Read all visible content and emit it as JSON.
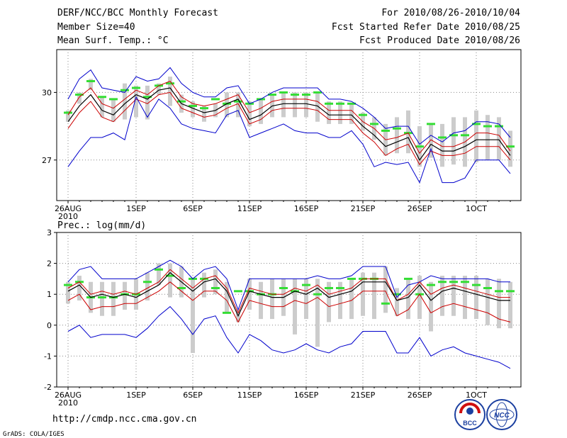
{
  "header": {
    "title": "DERF/NCC/BCC Monthly Forecast",
    "member_size": "Member Size=40",
    "variable": "Mean Surf. Temp.: °C",
    "forecast_period": "For 2010/08/26-2010/10/04",
    "start_refer": "Fcst Started Refer Date 2010/08/25",
    "produced": "Fcst Produced Date 2010/08/26"
  },
  "precip_label": "Prec.: log(mm/d)",
  "x_ticks": [
    "26AUG",
    "1SEP",
    "6SEP",
    "11SEP",
    "16SEP",
    "21SEP",
    "26SEP",
    "1OCT"
  ],
  "x_year": "2010",
  "footer": {
    "url": "http://cmdp.ncc.cma.gov.cn",
    "grads": "GrADS: COLA/IGES",
    "logo_bcc": "BCC",
    "logo_ncc": "NCC"
  },
  "colors": {
    "spread": "#0000cc",
    "members": "#cc0000",
    "mean": "#000000",
    "climatology": "#33dd33",
    "range_bar": "#cccccc",
    "grid": "#888888"
  },
  "chart_data": [
    {
      "type": "line",
      "title": "Mean Surf. Temp.: °C",
      "ylabel": "°C",
      "ylim": [
        25.2,
        31.9
      ],
      "yticks": [
        27,
        30
      ],
      "grid": true,
      "x_start_label": "26AUG",
      "days": 40,
      "series": [
        {
          "name": "max",
          "values": [
            29.7,
            30.6,
            31.0,
            30.2,
            30.1,
            30.0,
            30.7,
            30.5,
            30.6,
            31.1,
            30.4,
            30.0,
            29.8,
            29.8,
            30.2,
            30.3,
            29.5,
            29.7,
            30.0,
            30.2,
            30.2,
            30.2,
            30.2,
            29.7,
            29.7,
            29.6,
            29.3,
            28.9,
            28.4,
            28.5,
            28.5,
            27.7,
            28.1,
            27.8,
            28.2,
            28.3,
            28.7,
            28.7,
            28.6,
            28.0
          ]
        },
        {
          "name": "upper",
          "values": [
            29.0,
            29.8,
            30.2,
            29.5,
            29.3,
            29.7,
            30.1,
            29.9,
            30.3,
            30.5,
            29.8,
            29.5,
            29.4,
            29.5,
            29.7,
            29.9,
            29.1,
            29.3,
            29.6,
            29.7,
            29.7,
            29.7,
            29.6,
            29.2,
            29.2,
            29.2,
            28.7,
            28.4,
            27.9,
            28.0,
            28.2,
            27.3,
            27.9,
            27.6,
            27.6,
            27.8,
            28.2,
            28.2,
            28.1,
            27.4
          ]
        },
        {
          "name": "mean",
          "values": [
            28.7,
            29.4,
            29.9,
            29.2,
            29.0,
            29.5,
            29.9,
            29.7,
            30.1,
            30.2,
            29.5,
            29.3,
            29.1,
            29.2,
            29.5,
            29.7,
            28.8,
            29.0,
            29.4,
            29.5,
            29.5,
            29.5,
            29.4,
            29.0,
            29.0,
            29.0,
            28.5,
            28.1,
            27.6,
            27.8,
            28.0,
            27.0,
            27.7,
            27.4,
            27.4,
            27.6,
            27.9,
            27.9,
            27.9,
            27.2
          ]
        },
        {
          "name": "lower",
          "values": [
            28.4,
            29.1,
            29.6,
            28.9,
            28.7,
            29.2,
            29.7,
            29.5,
            29.9,
            30.0,
            29.3,
            29.1,
            28.9,
            29.0,
            29.3,
            29.5,
            28.6,
            28.8,
            29.2,
            29.3,
            29.3,
            29.3,
            29.2,
            28.8,
            28.8,
            28.8,
            28.2,
            27.8,
            27.2,
            27.5,
            27.7,
            26.8,
            27.4,
            27.2,
            27.2,
            27.3,
            27.6,
            27.6,
            27.6,
            27.0
          ]
        },
        {
          "name": "min",
          "values": [
            26.7,
            27.4,
            28.0,
            28.0,
            28.2,
            27.9,
            29.8,
            28.9,
            29.7,
            29.3,
            28.6,
            28.4,
            28.3,
            28.2,
            29.0,
            29.2,
            28.0,
            28.2,
            28.4,
            28.6,
            28.3,
            28.2,
            28.2,
            28.0,
            28.0,
            28.3,
            27.7,
            26.7,
            26.9,
            26.8,
            26.9,
            26.0,
            27.5,
            26.0,
            26.0,
            26.2,
            27.0,
            27.0,
            27.0,
            26.4
          ]
        },
        {
          "name": "climatology",
          "values": [
            29.1,
            29.9,
            30.5,
            29.8,
            29.7,
            30.1,
            30.2,
            29.8,
            30.3,
            30.4,
            29.6,
            29.4,
            29.3,
            29.7,
            29.5,
            29.6,
            29.5,
            29.7,
            29.9,
            30.0,
            29.9,
            29.9,
            30.0,
            29.5,
            29.5,
            29.5,
            29.0,
            28.6,
            28.3,
            28.4,
            28.2,
            27.6,
            28.6,
            28.0,
            28.1,
            28.1,
            28.6,
            28.5,
            28.5,
            27.6
          ]
        }
      ],
      "range_bars": {
        "high": [
          29.2,
          30.0,
          30.6,
          29.8,
          29.7,
          30.4,
          30.3,
          30.3,
          30.4,
          30.7,
          29.9,
          29.6,
          29.4,
          29.5,
          30.0,
          30.0,
          29.6,
          29.7,
          29.9,
          30.0,
          30.0,
          30.0,
          30.0,
          29.6,
          29.6,
          29.5,
          29.1,
          28.9,
          28.6,
          28.9,
          29.2,
          28.5,
          28.6,
          28.6,
          28.9,
          28.9,
          29.2,
          29.0,
          28.9,
          28.3
        ],
        "low": [
          28.7,
          29.5,
          30.1,
          28.9,
          28.7,
          28.8,
          28.9,
          28.8,
          29.9,
          29.4,
          29.1,
          28.9,
          28.7,
          28.9,
          28.9,
          28.9,
          28.5,
          28.6,
          28.9,
          28.9,
          28.9,
          28.9,
          28.7,
          28.6,
          28.6,
          28.6,
          28.3,
          27.9,
          27.2,
          27.3,
          27.3,
          26.7,
          27.1,
          26.7,
          26.8,
          26.7,
          26.9,
          27.0,
          27.0,
          26.7
        ]
      }
    },
    {
      "type": "line",
      "title": "Prec.: log(mm/d)",
      "ylabel": "log(mm/d)",
      "ylim": [
        -2,
        3
      ],
      "yticks": [
        -2,
        -1,
        0,
        1,
        2,
        3
      ],
      "grid": true,
      "x_start_label": "26AUG",
      "days": 40,
      "series": [
        {
          "name": "max",
          "values": [
            1.4,
            1.8,
            1.9,
            1.5,
            1.5,
            1.5,
            1.5,
            1.7,
            1.9,
            2.1,
            1.9,
            1.5,
            1.8,
            1.9,
            1.5,
            0.5,
            1.5,
            1.5,
            1.5,
            1.5,
            1.5,
            1.5,
            1.6,
            1.5,
            1.5,
            1.6,
            1.9,
            1.9,
            1.9,
            0.9,
            1.3,
            1.4,
            1.6,
            1.5,
            1.5,
            1.5,
            1.5,
            1.5,
            1.4,
            1.4
          ]
        },
        {
          "name": "upper",
          "values": [
            1.2,
            1.4,
            1.0,
            1.1,
            1.0,
            1.1,
            1.0,
            1.2,
            1.4,
            1.8,
            1.5,
            1.2,
            1.5,
            1.6,
            1.2,
            0.4,
            1.2,
            1.1,
            1.0,
            1.0,
            1.2,
            1.1,
            1.3,
            1.0,
            1.1,
            1.2,
            1.5,
            1.5,
            1.5,
            0.8,
            1.0,
            1.4,
            1.0,
            1.2,
            1.3,
            1.2,
            1.1,
            1.0,
            0.9,
            0.9
          ]
        },
        {
          "name": "mean",
          "values": [
            1.1,
            1.3,
            0.9,
            1.0,
            0.9,
            1.0,
            0.9,
            1.1,
            1.3,
            1.7,
            1.4,
            1.1,
            1.4,
            1.5,
            1.1,
            0.3,
            1.1,
            1.0,
            0.9,
            0.9,
            1.1,
            1.0,
            1.2,
            0.9,
            1.0,
            1.1,
            1.4,
            1.4,
            1.4,
            0.8,
            0.9,
            1.3,
            0.8,
            1.1,
            1.2,
            1.1,
            1.0,
            0.9,
            0.8,
            0.8
          ]
        },
        {
          "name": "lower",
          "values": [
            0.8,
            1.0,
            0.5,
            0.6,
            0.6,
            0.7,
            0.7,
            0.9,
            1.1,
            1.4,
            1.1,
            0.8,
            1.1,
            1.1,
            0.8,
            0.1,
            0.8,
            0.7,
            0.6,
            0.6,
            0.8,
            0.7,
            0.9,
            0.6,
            0.7,
            0.8,
            1.1,
            1.1,
            1.1,
            0.3,
            0.5,
            1.0,
            0.4,
            0.6,
            0.7,
            0.6,
            0.5,
            0.4,
            0.2,
            0.1
          ]
        },
        {
          "name": "min",
          "values": [
            -0.2,
            0.0,
            -0.4,
            -0.3,
            -0.3,
            -0.3,
            -0.4,
            -0.1,
            0.3,
            0.6,
            0.2,
            -0.3,
            0.2,
            0.3,
            -0.4,
            -0.9,
            -0.3,
            -0.5,
            -0.8,
            -0.9,
            -0.8,
            -0.6,
            -0.8,
            -0.9,
            -0.7,
            -0.6,
            -0.2,
            -0.2,
            -0.2,
            -0.9,
            -0.9,
            -0.4,
            -1.0,
            -0.8,
            -0.7,
            -0.9,
            -1.0,
            -1.1,
            -1.2,
            -1.4
          ]
        },
        {
          "name": "climatology",
          "values": [
            1.3,
            1.4,
            0.9,
            0.9,
            0.9,
            1.0,
            1.0,
            1.4,
            1.8,
            1.6,
            1.2,
            1.5,
            1.5,
            1.2,
            0.4,
            1.1,
            1.1,
            1.0,
            1.0,
            1.2,
            1.1,
            1.3,
            1.0,
            1.2,
            1.2,
            1.5,
            1.5,
            1.5,
            0.7,
            1.0,
            1.5,
            1.0,
            1.3,
            1.4,
            1.4,
            1.4,
            1.3,
            1.2,
            1.1,
            1.1
          ]
        }
      ],
      "range_bars": {
        "high": [
          1.4,
          1.6,
          1.4,
          1.4,
          1.4,
          1.4,
          1.5,
          1.7,
          2.0,
          2.0,
          1.9,
          1.5,
          1.7,
          1.8,
          1.4,
          0.5,
          1.5,
          1.4,
          1.5,
          1.5,
          1.5,
          1.5,
          1.5,
          1.4,
          1.4,
          1.5,
          1.7,
          1.7,
          1.9,
          1.2,
          1.5,
          1.6,
          1.4,
          1.6,
          1.6,
          1.6,
          1.6,
          1.5,
          1.5,
          1.4
        ],
        "low": [
          0.7,
          0.8,
          0.4,
          0.3,
          0.3,
          0.5,
          0.5,
          0.8,
          1.3,
          0.9,
          0.9,
          -0.9,
          0.9,
          1.0,
          0.4,
          0.1,
          0.5,
          0.2,
          0.2,
          0.3,
          -0.3,
          0.2,
          -0.7,
          0.1,
          0.2,
          0.2,
          0.3,
          0.2,
          0.4,
          0.3,
          0.2,
          0.2,
          -0.2,
          0.3,
          0.3,
          0.2,
          0.2,
          0.0,
          -0.1,
          -0.1
        ]
      }
    }
  ]
}
